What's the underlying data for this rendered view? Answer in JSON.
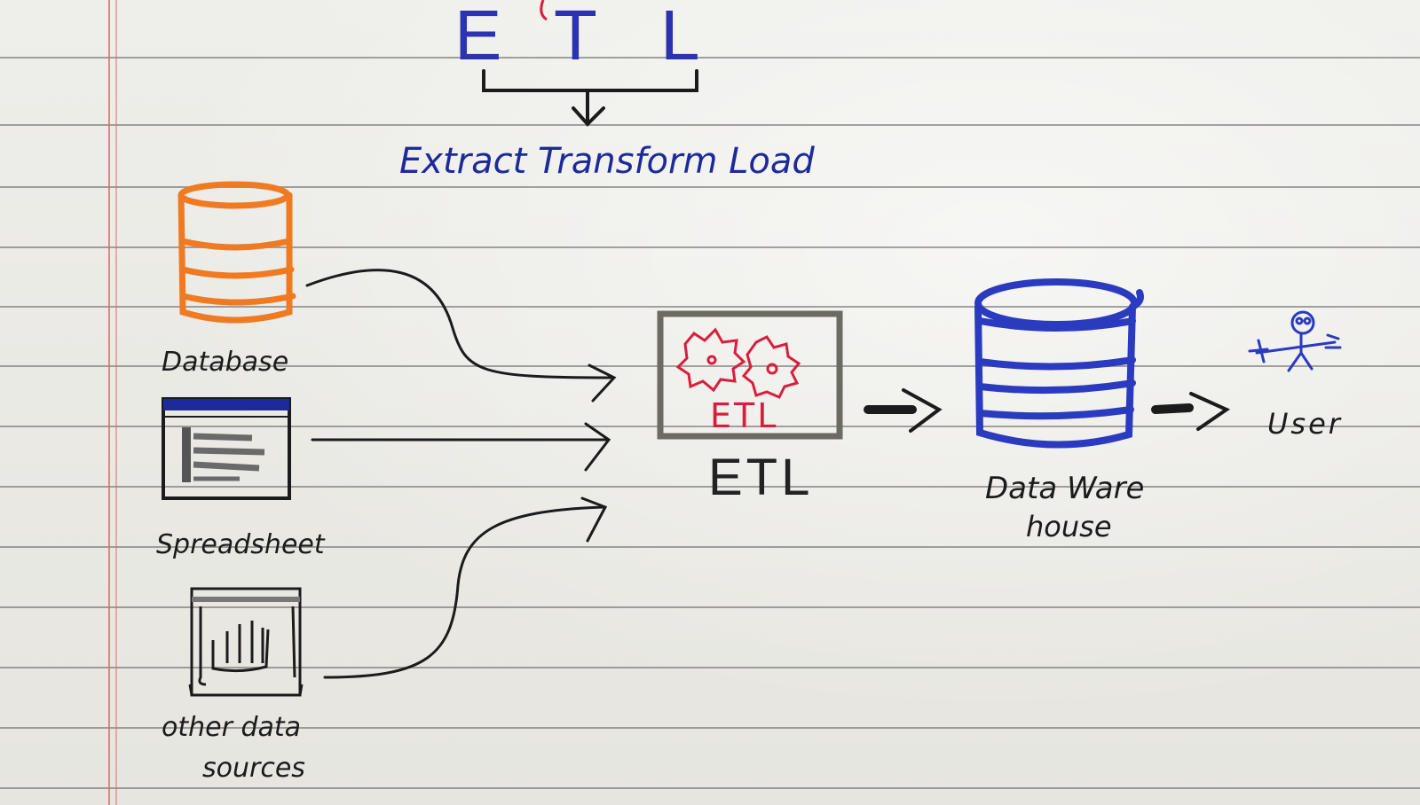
{
  "header": {
    "letters": [
      "E",
      "T",
      "L"
    ],
    "expansion": "Extract Transform Load"
  },
  "sources": {
    "database_label": "Database",
    "spreadsheet_label": "Spreadsheet",
    "other_label_line1": "other data",
    "other_label_line2": "sources"
  },
  "etl": {
    "box_label": "ETL",
    "caption": "ETL"
  },
  "warehouse": {
    "label_line1": "Data Ware",
    "label_line2": "house"
  },
  "user": {
    "label": "User"
  },
  "colors": {
    "header_blue": "#2b33b0",
    "database_orange": "#f07a22",
    "warehouse_blue": "#2a3bc0",
    "gear_red": "#d81e3c",
    "ink_black": "#1b1b1b",
    "margin_red": "#e06a6a"
  }
}
